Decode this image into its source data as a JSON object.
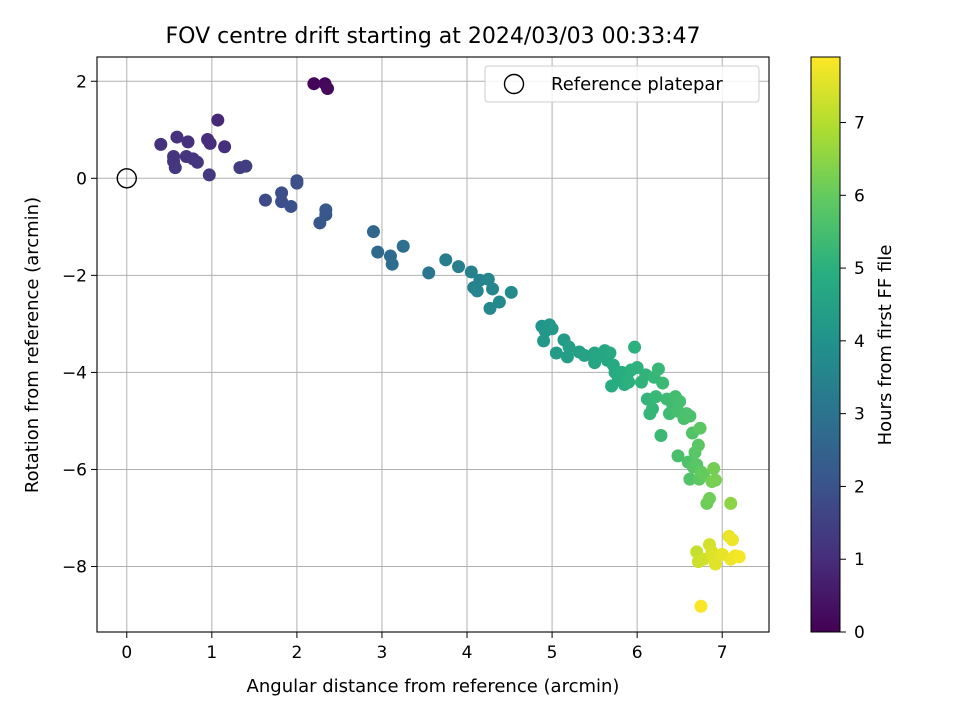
{
  "chart_data": {
    "type": "scatter",
    "title": "FOV centre drift starting at 2024/03/03 00:33:47",
    "xlabel": "Angular distance from reference (arcmin)",
    "ylabel": "Rotation from reference (arcmin)",
    "xlim": [
      -0.35,
      7.55
    ],
    "ylim": [
      -9.35,
      2.5
    ],
    "xticks": [
      0,
      1,
      2,
      3,
      4,
      5,
      6,
      7
    ],
    "yticks": [
      2,
      0,
      -2,
      -4,
      -6,
      -8
    ],
    "grid": true,
    "legend": {
      "placement": "upper-right",
      "entries": [
        "Reference platepar"
      ]
    },
    "reference_point": {
      "x": 0,
      "y": 0,
      "name": "Reference platepar"
    },
    "colorbar": {
      "label": "Hours from first FF file",
      "range": [
        0,
        7.9
      ],
      "ticks": [
        0,
        1,
        2,
        3,
        4,
        5,
        6,
        7
      ],
      "colormap": "viridis"
    },
    "points": [
      {
        "x": 2.2,
        "y": 1.95,
        "c": 0.1
      },
      {
        "x": 2.33,
        "y": 1.95,
        "c": 0.15
      },
      {
        "x": 2.36,
        "y": 1.85,
        "c": 0.2
      },
      {
        "x": 1.07,
        "y": 1.2,
        "c": 0.9
      },
      {
        "x": 0.4,
        "y": 0.7,
        "c": 1.1
      },
      {
        "x": 0.59,
        "y": 0.85,
        "c": 1.1
      },
      {
        "x": 0.72,
        "y": 0.75,
        "c": 1.1
      },
      {
        "x": 0.95,
        "y": 0.8,
        "c": 1.0
      },
      {
        "x": 0.98,
        "y": 0.72,
        "c": 1.0
      },
      {
        "x": 1.15,
        "y": 0.65,
        "c": 1.05
      },
      {
        "x": 0.55,
        "y": 0.45,
        "c": 1.2
      },
      {
        "x": 0.55,
        "y": 0.35,
        "c": 1.2
      },
      {
        "x": 0.7,
        "y": 0.45,
        "c": 1.2
      },
      {
        "x": 0.78,
        "y": 0.4,
        "c": 1.2
      },
      {
        "x": 0.83,
        "y": 0.33,
        "c": 1.25
      },
      {
        "x": 0.57,
        "y": 0.22,
        "c": 1.25
      },
      {
        "x": 0.97,
        "y": 0.07,
        "c": 1.3
      },
      {
        "x": 1.33,
        "y": 0.22,
        "c": 1.4
      },
      {
        "x": 1.4,
        "y": 0.25,
        "c": 1.45
      },
      {
        "x": 1.63,
        "y": -0.45,
        "c": 1.8
      },
      {
        "x": 1.82,
        "y": -0.3,
        "c": 1.9
      },
      {
        "x": 1.82,
        "y": -0.48,
        "c": 1.9
      },
      {
        "x": 1.93,
        "y": -0.58,
        "c": 1.95
      },
      {
        "x": 2.0,
        "y": -0.05,
        "c": 1.9
      },
      {
        "x": 2.0,
        "y": -0.1,
        "c": 1.92
      },
      {
        "x": 2.27,
        "y": -0.92,
        "c": 2.1
      },
      {
        "x": 2.34,
        "y": -0.65,
        "c": 2.15
      },
      {
        "x": 2.34,
        "y": -0.75,
        "c": 2.15
      },
      {
        "x": 2.9,
        "y": -1.1,
        "c": 2.6
      },
      {
        "x": 2.95,
        "y": -1.52,
        "c": 2.7
      },
      {
        "x": 3.1,
        "y": -1.6,
        "c": 2.75
      },
      {
        "x": 3.12,
        "y": -1.77,
        "c": 2.8
      },
      {
        "x": 3.25,
        "y": -1.4,
        "c": 2.85
      },
      {
        "x": 3.55,
        "y": -1.95,
        "c": 3.1
      },
      {
        "x": 3.75,
        "y": -1.68,
        "c": 3.3
      },
      {
        "x": 3.9,
        "y": -1.82,
        "c": 3.35
      },
      {
        "x": 4.05,
        "y": -1.93,
        "c": 3.45
      },
      {
        "x": 4.08,
        "y": -2.25,
        "c": 3.5
      },
      {
        "x": 4.12,
        "y": -2.32,
        "c": 3.55
      },
      {
        "x": 4.15,
        "y": -2.1,
        "c": 3.5
      },
      {
        "x": 4.25,
        "y": -2.08,
        "c": 3.6
      },
      {
        "x": 4.3,
        "y": -2.28,
        "c": 3.6
      },
      {
        "x": 4.27,
        "y": -2.68,
        "c": 3.65
      },
      {
        "x": 4.38,
        "y": -2.55,
        "c": 3.7
      },
      {
        "x": 4.52,
        "y": -2.35,
        "c": 3.75
      },
      {
        "x": 4.88,
        "y": -3.05,
        "c": 4.1
      },
      {
        "x": 4.92,
        "y": -3.15,
        "c": 4.15
      },
      {
        "x": 4.97,
        "y": -3.02,
        "c": 4.15
      },
      {
        "x": 5.0,
        "y": -3.1,
        "c": 4.2
      },
      {
        "x": 4.9,
        "y": -3.35,
        "c": 4.2
      },
      {
        "x": 5.05,
        "y": -3.6,
        "c": 4.3
      },
      {
        "x": 5.14,
        "y": -3.33,
        "c": 4.3
      },
      {
        "x": 5.18,
        "y": -3.68,
        "c": 4.35
      },
      {
        "x": 5.2,
        "y": -3.48,
        "c": 4.4
      },
      {
        "x": 5.32,
        "y": -3.58,
        "c": 4.45
      },
      {
        "x": 5.38,
        "y": -3.65,
        "c": 4.5
      },
      {
        "x": 5.5,
        "y": -3.6,
        "c": 4.6
      },
      {
        "x": 5.5,
        "y": -3.8,
        "c": 4.6
      },
      {
        "x": 5.55,
        "y": -3.65,
        "c": 4.65
      },
      {
        "x": 5.62,
        "y": -3.55,
        "c": 4.7
      },
      {
        "x": 5.65,
        "y": -3.75,
        "c": 4.7
      },
      {
        "x": 5.68,
        "y": -3.6,
        "c": 4.75
      },
      {
        "x": 5.72,
        "y": -3.85,
        "c": 4.8
      },
      {
        "x": 5.74,
        "y": -4.0,
        "c": 4.8
      },
      {
        "x": 5.7,
        "y": -4.28,
        "c": 4.85
      },
      {
        "x": 5.78,
        "y": -4.12,
        "c": 4.85
      },
      {
        "x": 5.82,
        "y": -4.0,
        "c": 4.9
      },
      {
        "x": 5.85,
        "y": -4.25,
        "c": 4.9
      },
      {
        "x": 5.88,
        "y": -4.1,
        "c": 4.95
      },
      {
        "x": 5.9,
        "y": -4.2,
        "c": 5.0
      },
      {
        "x": 5.93,
        "y": -3.95,
        "c": 5.0
      },
      {
        "x": 5.97,
        "y": -3.48,
        "c": 5.0
      },
      {
        "x": 6.0,
        "y": -3.9,
        "c": 5.05
      },
      {
        "x": 6.05,
        "y": -4.2,
        "c": 5.1
      },
      {
        "x": 6.1,
        "y": -4.05,
        "c": 5.1
      },
      {
        "x": 6.12,
        "y": -4.55,
        "c": 5.15
      },
      {
        "x": 6.15,
        "y": -4.85,
        "c": 5.2
      },
      {
        "x": 6.18,
        "y": -4.75,
        "c": 5.2
      },
      {
        "x": 6.2,
        "y": -4.1,
        "c": 5.2
      },
      {
        "x": 6.22,
        "y": -4.5,
        "c": 5.25
      },
      {
        "x": 6.25,
        "y": -3.93,
        "c": 5.25
      },
      {
        "x": 6.28,
        "y": -5.3,
        "c": 5.3
      },
      {
        "x": 6.3,
        "y": -4.22,
        "c": 5.3
      },
      {
        "x": 6.35,
        "y": -4.55,
        "c": 5.35
      },
      {
        "x": 6.38,
        "y": -4.85,
        "c": 5.4
      },
      {
        "x": 6.42,
        "y": -4.7,
        "c": 5.4
      },
      {
        "x": 6.45,
        "y": -4.5,
        "c": 5.45
      },
      {
        "x": 6.48,
        "y": -4.8,
        "c": 5.5
      },
      {
        "x": 6.5,
        "y": -4.6,
        "c": 5.5
      },
      {
        "x": 6.48,
        "y": -5.72,
        "c": 5.55
      },
      {
        "x": 6.55,
        "y": -4.95,
        "c": 5.55
      },
      {
        "x": 6.58,
        "y": -4.85,
        "c": 5.6
      },
      {
        "x": 6.62,
        "y": -4.9,
        "c": 5.6
      },
      {
        "x": 6.6,
        "y": -5.85,
        "c": 5.65
      },
      {
        "x": 6.62,
        "y": -6.2,
        "c": 5.7
      },
      {
        "x": 6.65,
        "y": -5.25,
        "c": 5.7
      },
      {
        "x": 6.66,
        "y": -5.95,
        "c": 5.75
      },
      {
        "x": 6.68,
        "y": -5.65,
        "c": 5.8
      },
      {
        "x": 6.7,
        "y": -5.9,
        "c": 5.8
      },
      {
        "x": 6.72,
        "y": -5.5,
        "c": 5.85
      },
      {
        "x": 6.74,
        "y": -5.15,
        "c": 5.85
      },
      {
        "x": 6.73,
        "y": -6.2,
        "c": 5.9
      },
      {
        "x": 6.75,
        "y": -6.05,
        "c": 5.95
      },
      {
        "x": 6.78,
        "y": -6.1,
        "c": 6.0
      },
      {
        "x": 6.82,
        "y": -6.7,
        "c": 6.1
      },
      {
        "x": 6.85,
        "y": -6.6,
        "c": 6.15
      },
      {
        "x": 6.88,
        "y": -6.25,
        "c": 6.2
      },
      {
        "x": 6.9,
        "y": -5.98,
        "c": 6.2
      },
      {
        "x": 6.92,
        "y": -6.22,
        "c": 6.25
      },
      {
        "x": 7.1,
        "y": -6.7,
        "c": 6.5
      },
      {
        "x": 6.7,
        "y": -7.7,
        "c": 7.2
      },
      {
        "x": 6.72,
        "y": -7.9,
        "c": 7.3
      },
      {
        "x": 6.78,
        "y": -7.85,
        "c": 7.35
      },
      {
        "x": 6.85,
        "y": -7.55,
        "c": 7.4
      },
      {
        "x": 6.88,
        "y": -7.7,
        "c": 7.45
      },
      {
        "x": 6.9,
        "y": -7.8,
        "c": 7.5
      },
      {
        "x": 6.92,
        "y": -7.95,
        "c": 7.55
      },
      {
        "x": 7.0,
        "y": -7.75,
        "c": 7.6
      },
      {
        "x": 7.08,
        "y": -7.38,
        "c": 7.65
      },
      {
        "x": 7.1,
        "y": -7.85,
        "c": 7.7
      },
      {
        "x": 7.12,
        "y": -7.45,
        "c": 7.7
      },
      {
        "x": 7.15,
        "y": -7.78,
        "c": 7.75
      },
      {
        "x": 7.2,
        "y": -7.8,
        "c": 7.8
      },
      {
        "x": 6.75,
        "y": -8.82,
        "c": 7.85
      }
    ]
  }
}
